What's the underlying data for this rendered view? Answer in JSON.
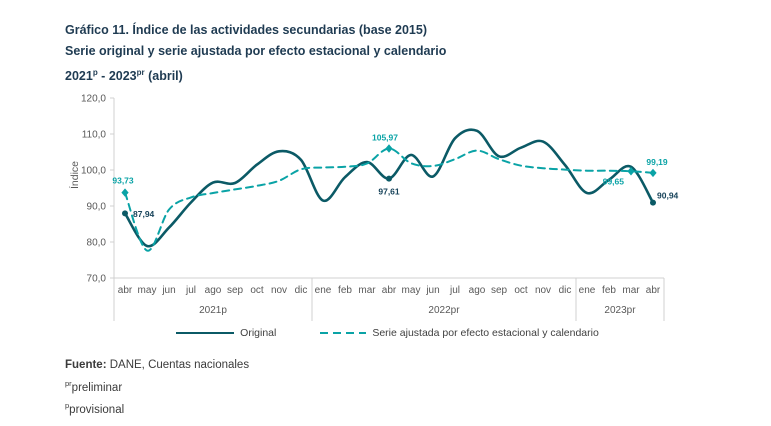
{
  "title": {
    "line1": "Gráfico 11. Índice de las actividades secundarias (base 2015)",
    "line2": "Serie original y serie ajustada por efecto estacional y calendario",
    "line3_y1": "2021",
    "line3_sup1": "p",
    "line3_sep": " - ",
    "line3_y2": "2023",
    "line3_sup2": "pr",
    "line3_rest": " (abril)"
  },
  "legend": {
    "original_label": "Original",
    "adjusted_label": "Serie ajustada por efecto estacional y calendario"
  },
  "footer": {
    "fuente_label": "Fuente:",
    "fuente_text": " DANE, Cuentas nacionales",
    "note1_sup": "pr",
    "note1_text": "preliminar",
    "note2_sup": "p",
    "note2_text": "provisional"
  },
  "colors": {
    "original_line": "#0b5a66",
    "original_label": "#17435a",
    "adjusted_line": "#0aa3a6",
    "axis_line": "#d0d0d0",
    "axis_text": "#595959",
    "title_text": "#1f3b52"
  },
  "chart_data": {
    "type": "line",
    "ylabel": "Índice",
    "ylim": [
      70,
      120
    ],
    "grid": false,
    "legend_position": "bottom",
    "y_ticks": [
      {
        "value": 70,
        "label": "70,0"
      },
      {
        "value": 80,
        "label": "80,0"
      },
      {
        "value": 90,
        "label": "90,0"
      },
      {
        "value": 100,
        "label": "100,0"
      },
      {
        "value": 110,
        "label": "110,0"
      },
      {
        "value": 120,
        "label": "120,0"
      }
    ],
    "x_groups": [
      {
        "year": "2021p",
        "months": [
          "abr",
          "may",
          "jun",
          "jul",
          "ago",
          "sep",
          "oct",
          "nov",
          "dic"
        ]
      },
      {
        "year": "2022pr",
        "months": [
          "ene",
          "feb",
          "mar",
          "abr",
          "may",
          "jun",
          "jul",
          "ago",
          "sep",
          "oct",
          "nov",
          "dic"
        ]
      },
      {
        "year": "2023pr",
        "months": [
          "ene",
          "feb",
          "mar",
          "abr"
        ]
      }
    ],
    "series": [
      {
        "name": "Original",
        "style": "solid",
        "color": "#0b5a66",
        "label_color": "#17435a",
        "values": [
          87.94,
          78.9,
          84.0,
          91.0,
          96.5,
          96.4,
          101.5,
          105.2,
          102.8,
          91.5,
          98.0,
          102.2,
          97.61,
          104.2,
          98.2,
          108.8,
          110.9,
          103.8,
          106.2,
          107.9,
          101.4,
          93.6,
          97.3,
          100.9,
          90.94
        ],
        "labels": [
          {
            "index": 0,
            "text": "87,94",
            "dx": 8,
            "dy": 3.5,
            "anchor": "start"
          },
          {
            "index": 12,
            "text": "97,61",
            "dx": 0,
            "dy": 16,
            "anchor": "middle"
          },
          {
            "index": 24,
            "text": "90,94",
            "dx": 4,
            "dy": -4,
            "anchor": "start"
          }
        ]
      },
      {
        "name": "Serie ajustada por efecto estacional y calendario",
        "style": "dashed",
        "color": "#0aa3a6",
        "label_color": "#0aa3a6",
        "values": [
          93.73,
          77.6,
          89.0,
          92.4,
          93.6,
          94.6,
          95.6,
          97.0,
          100.2,
          100.7,
          100.9,
          101.8,
          105.97,
          101.9,
          101.1,
          103.0,
          105.4,
          103.0,
          101.2,
          100.5,
          100.1,
          99.8,
          99.8,
          99.65,
          99.19
        ],
        "labels": [
          {
            "index": 0,
            "text": "93,73",
            "dx": -2,
            "dy": -9,
            "anchor": "middle"
          },
          {
            "index": 12,
            "text": "105,97",
            "dx": -4,
            "dy": -8,
            "anchor": "middle"
          },
          {
            "index": 23,
            "text": "99,65",
            "dx": -7,
            "dy": 13,
            "anchor": "end"
          },
          {
            "index": 24,
            "text": "99,19",
            "dx": 4,
            "dy": -8,
            "anchor": "middle"
          }
        ]
      }
    ]
  }
}
